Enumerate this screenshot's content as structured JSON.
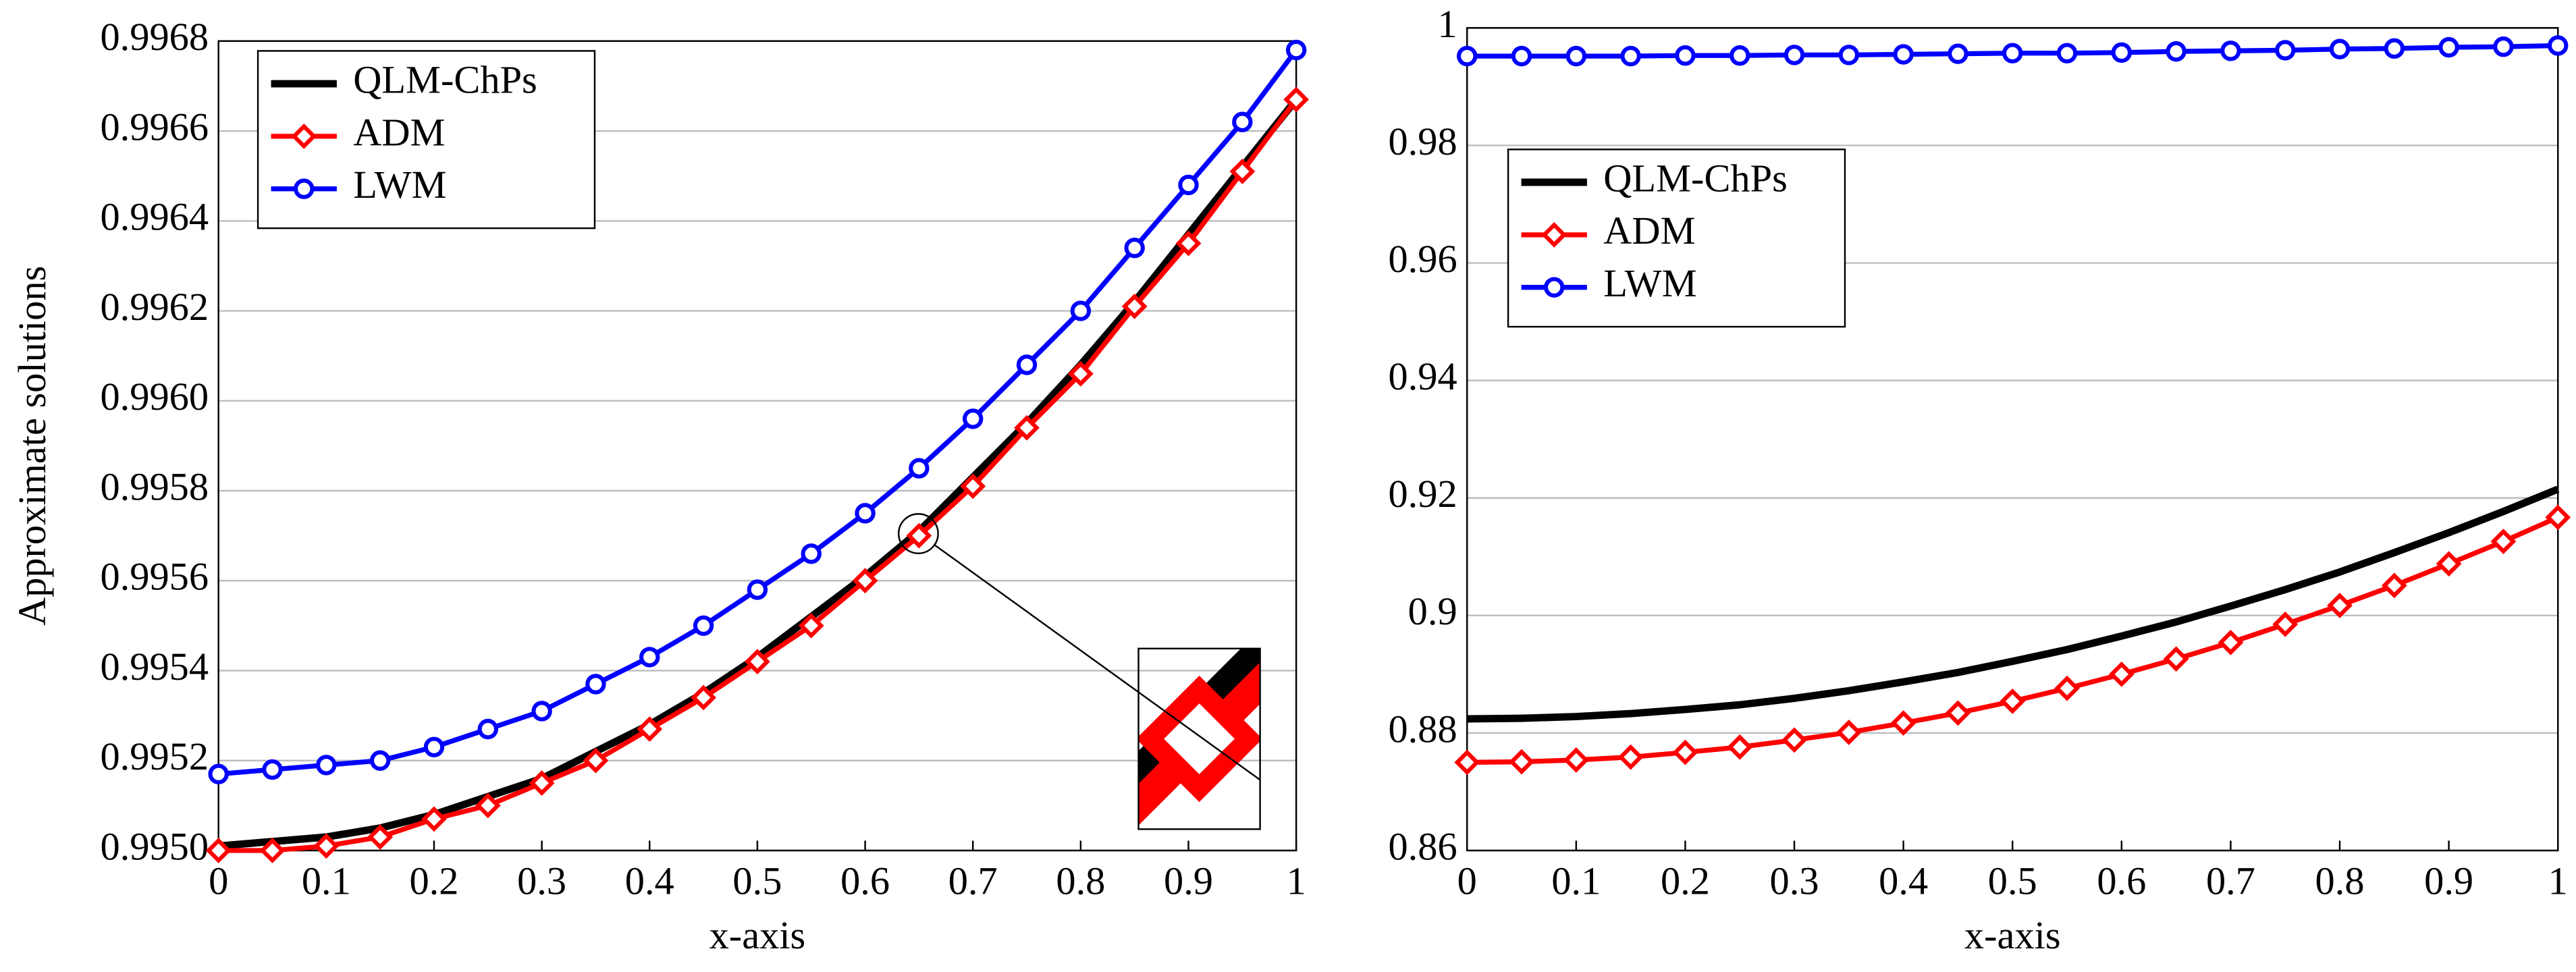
{
  "chart_data": [
    {
      "type": "line",
      "ylabel": "Approximate solutions",
      "xlabel": "x-axis",
      "x": [
        0,
        0.05,
        0.1,
        0.15,
        0.2,
        0.25,
        0.3,
        0.35,
        0.4,
        0.45,
        0.5,
        0.55,
        0.6,
        0.65,
        0.7,
        0.75,
        0.8,
        0.85,
        0.9,
        0.95,
        1
      ],
      "series": [
        {
          "name": "QLM-ChPs",
          "color": "#000000",
          "marker": "none",
          "values": [
            0.99501,
            0.99502,
            0.99503,
            0.99505,
            0.99508,
            0.99512,
            0.99516,
            0.99522,
            0.99528,
            0.99535,
            0.99543,
            0.99552,
            0.99561,
            0.99571,
            0.99583,
            0.99595,
            0.99608,
            0.99622,
            0.99637,
            0.99652,
            0.99667
          ]
        },
        {
          "name": "ADM",
          "color": "#ff0000",
          "marker": "diamond",
          "values": [
            0.995,
            0.995,
            0.99501,
            0.99503,
            0.99507,
            0.9951,
            0.99515,
            0.9952,
            0.99527,
            0.99534,
            0.99542,
            0.9955,
            0.9956,
            0.9957,
            0.99581,
            0.99594,
            0.99606,
            0.99621,
            0.99635,
            0.99651,
            0.99667
          ]
        },
        {
          "name": "LWM",
          "color": "#0000ff",
          "marker": "circle",
          "values": [
            0.99517,
            0.99518,
            0.99519,
            0.9952,
            0.99523,
            0.99527,
            0.99531,
            0.99537,
            0.99543,
            0.9955,
            0.99558,
            0.99566,
            0.99575,
            0.99585,
            0.99596,
            0.99608,
            0.9962,
            0.99634,
            0.99648,
            0.99662,
            0.99678
          ]
        }
      ],
      "xlim": [
        0,
        1
      ],
      "xticks": [
        0,
        0.1,
        0.2,
        0.3,
        0.4,
        0.5,
        0.6,
        0.7,
        0.8,
        0.9,
        1
      ],
      "ylim": [
        0.995,
        0.9968
      ],
      "yticks": [
        {
          "value": 0.995,
          "label": "0.9950"
        },
        0.9952,
        0.9954,
        0.9956,
        0.9958,
        {
          "value": 0.996,
          "label": "0.9960"
        },
        0.9962,
        0.9964,
        0.9966,
        0.9968
      ],
      "grid": true,
      "legend": "upper left"
    },
    {
      "type": "line",
      "xlabel": "x-axis",
      "x": [
        0,
        0.05,
        0.1,
        0.15,
        0.2,
        0.25,
        0.3,
        0.35,
        0.4,
        0.45,
        0.5,
        0.55,
        0.6,
        0.65,
        0.7,
        0.75,
        0.8,
        0.85,
        0.9,
        0.95,
        1
      ],
      "series": [
        {
          "name": "QLM-ChPs",
          "color": "#000000",
          "marker": "none",
          "values": [
            0.8824,
            0.8825,
            0.8828,
            0.8833,
            0.884,
            0.8848,
            0.8859,
            0.8872,
            0.8887,
            0.8903,
            0.8922,
            0.8942,
            0.8965,
            0.8989,
            0.9016,
            0.9044,
            0.9074,
            0.9107,
            0.9141,
            0.9177,
            0.9215
          ]
        },
        {
          "name": "ADM",
          "color": "#ff0000",
          "marker": "diamond",
          "values": [
            0.875,
            0.8751,
            0.8754,
            0.8759,
            0.8767,
            0.8776,
            0.8788,
            0.8801,
            0.8817,
            0.8834,
            0.8854,
            0.8876,
            0.89,
            0.8926,
            0.8954,
            0.8985,
            0.9017,
            0.9051,
            0.9088,
            0.9126,
            0.9167
          ]
        },
        {
          "name": "LWM",
          "color": "#0000ff",
          "marker": "circle",
          "values": [
            0.9952,
            0.9952,
            0.9952,
            0.9952,
            0.9953,
            0.9953,
            0.9954,
            0.9954,
            0.9955,
            0.9956,
            0.9957,
            0.9957,
            0.9958,
            0.996,
            0.9961,
            0.9962,
            0.9964,
            0.9965,
            0.9967,
            0.9968,
            0.997
          ]
        }
      ],
      "xlim": [
        0,
        1
      ],
      "xticks": [
        0,
        0.1,
        0.2,
        0.3,
        0.4,
        0.5,
        0.6,
        0.7,
        0.8,
        0.9,
        1
      ],
      "ylim": [
        0.86,
        1
      ],
      "yticks": [
        0.86,
        0.88,
        0.9,
        0.92,
        0.94,
        0.96,
        0.98,
        1
      ],
      "grid": true,
      "legend": "upper left"
    }
  ]
}
